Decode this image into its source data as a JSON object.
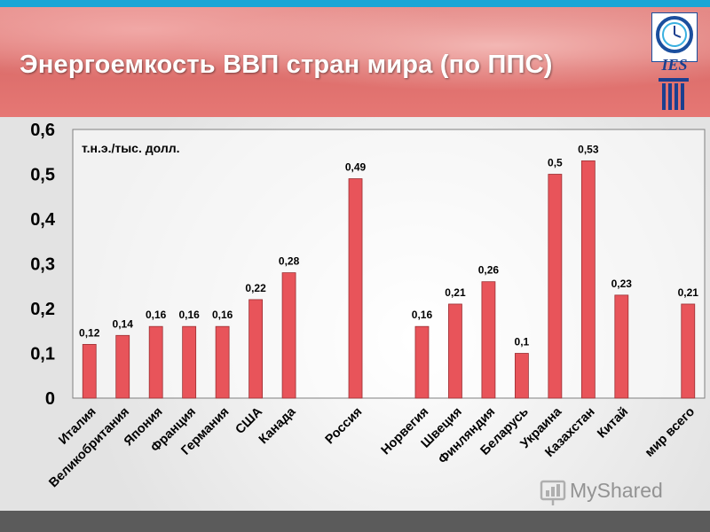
{
  "header": {
    "title": "Энергоемкость ВВП стран мира (по ППС)",
    "logo_text": "IES"
  },
  "watermark": {
    "text": "MyShared"
  },
  "colors": {
    "bar": "#e8545a",
    "bar_stroke": "#9b2f33",
    "header": "#dc6e6b",
    "top_strip": "#1aa6d6"
  },
  "chart_data": {
    "type": "bar",
    "unit_label": "т.н.э./тыс. долл.",
    "ylim": [
      0,
      0.6
    ],
    "yticks": [
      "0",
      "0,1",
      "0,2",
      "0,3",
      "0,4",
      "0,5",
      "0,6"
    ],
    "grid": false,
    "categories": [
      "Италия",
      "Великобритания",
      "Япония",
      "Франция",
      "Германия",
      "США",
      "Канада",
      "",
      "Россия",
      "",
      "Норвегия",
      "Швеция",
      "Финляндия",
      "Беларусь",
      "Украина",
      "Казахстан",
      "Китай",
      "",
      "мир всего"
    ],
    "values": [
      0.12,
      0.14,
      0.16,
      0.16,
      0.16,
      0.22,
      0.28,
      null,
      0.49,
      null,
      0.16,
      0.21,
      0.26,
      0.1,
      0.5,
      0.53,
      0.23,
      null,
      0.21
    ],
    "value_labels": [
      "0,12",
      "0,14",
      "0,16",
      "0,16",
      "0,16",
      "0,22",
      "0,28",
      "",
      "0,49",
      "",
      "0,16",
      "0,21",
      "0,26",
      "0,1",
      "0,5",
      "0,53",
      "0,23",
      "",
      "0,21"
    ]
  }
}
